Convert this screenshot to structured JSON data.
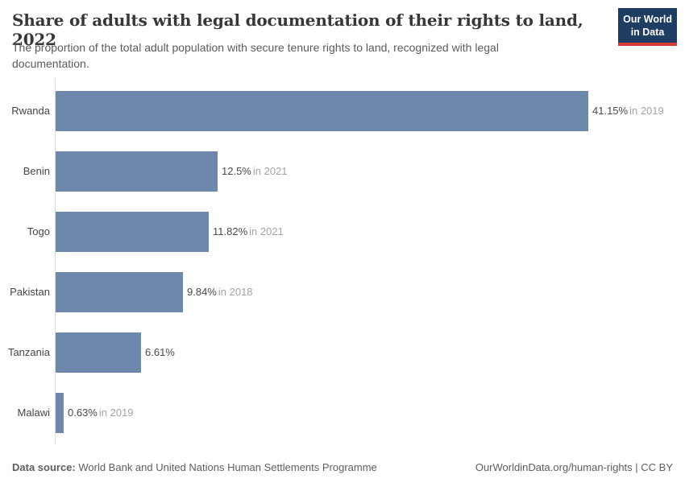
{
  "header": {
    "title": "Share of adults with legal documentation of their rights to land, 2022",
    "subtitle": "The proportion of the total adult population with secure tenure rights to land, recognized with legal documentation.",
    "logo": {
      "line1": "Our World",
      "line2": "in Data"
    }
  },
  "chart_data": {
    "type": "bar",
    "orientation": "horizontal",
    "title": "Share of adults with legal documentation of their rights to land, 2022",
    "subtitle": "The proportion of the total adult population with secure tenure rights to land, recognized with legal documentation.",
    "unit": "%",
    "grid": false,
    "xlim": [
      0,
      41.15
    ],
    "categories": [
      "Rwanda",
      "Benin",
      "Togo",
      "Pakistan",
      "Tanzania",
      "Malawi"
    ],
    "values": [
      41.15,
      12.5,
      11.82,
      9.84,
      6.61,
      0.63
    ],
    "value_labels": [
      "41.15%",
      "12.5%",
      "11.82%",
      "9.84%",
      "6.61%",
      "0.63%"
    ],
    "year_labels": [
      "in 2019",
      "in 2021",
      "in 2021",
      "in 2018",
      "",
      "in 2019"
    ],
    "bar_color": "#6d87ad"
  },
  "footer": {
    "source_label": "Data source:",
    "source_text": " World Bank and United Nations Human Settlements Programme",
    "credit": "OurWorldinData.org/human-rights | CC BY"
  },
  "colors": {
    "bar": "#6d87ad",
    "logo_background": "#1d3d63",
    "logo_stripe": "#d73c34",
    "title_text": "#383636",
    "subtitle_text": "#5b5b5b",
    "category_text": "#454545",
    "value_text": "#4a4a4a",
    "year_text": "#a3a3a3",
    "axis_line": "#dddddd"
  }
}
